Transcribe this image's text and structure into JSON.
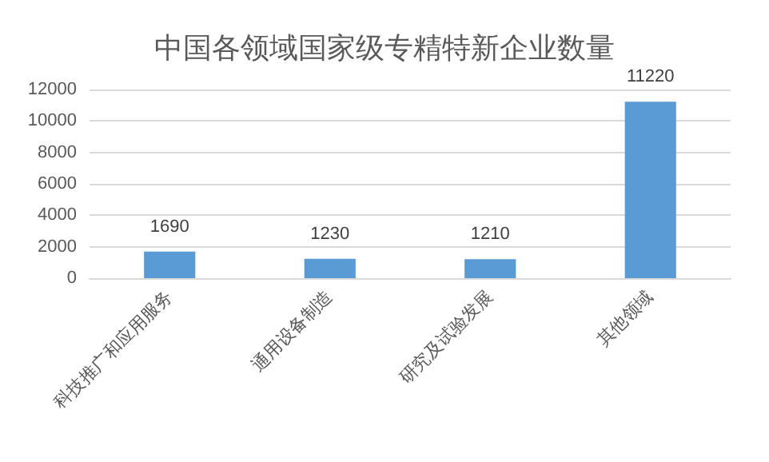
{
  "chart_data": {
    "type": "bar",
    "title": "中国各领域国家级专精特新企业数量",
    "categories": [
      "科技推广和应用服务",
      "通用设备制造",
      "研究及试验发展",
      "其他领域"
    ],
    "values": [
      1690,
      1230,
      1210,
      11220
    ],
    "color": "#5b9bd5",
    "ylim": [
      0,
      12000
    ],
    "yticks": [
      0,
      2000,
      4000,
      6000,
      8000,
      10000,
      12000
    ],
    "grid": "y",
    "data_labels": true
  }
}
